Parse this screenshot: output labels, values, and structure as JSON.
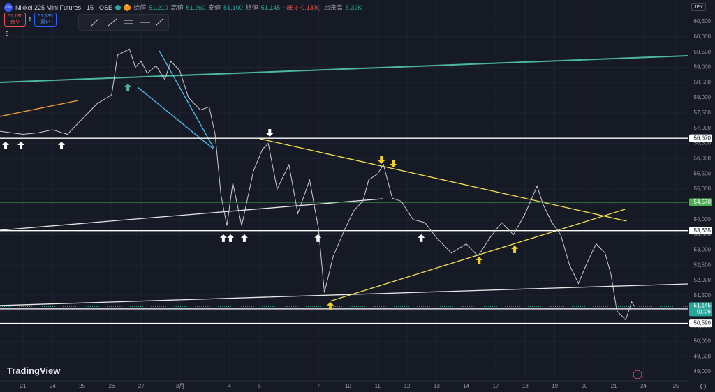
{
  "header": {
    "badge": "225",
    "symbol": "Nikkei 225 Mini Futures · 15 · OSE",
    "flag": "D",
    "open_label": "始値",
    "open": "51,210",
    "high_label": "高値",
    "high": "51,260",
    "low_label": "安値",
    "low": "51,100",
    "close_label": "終値",
    "close": "51,145",
    "change": "−85 (−0.13%)",
    "volume_label": "出来高",
    "volume": "5.32K"
  },
  "order": {
    "sell_price": "51,130",
    "sell_label": "売り",
    "spread": "5",
    "buy_price": "51,135",
    "buy_label": "買い"
  },
  "indicator": "5",
  "currency": "JPY",
  "brand": "TradingView",
  "chart_data": {
    "type": "line",
    "color": "#c9ccd4",
    "x": [
      -0.78,
      0,
      0.5,
      1,
      1.5,
      2,
      2.5,
      3,
      3.2,
      3.6,
      3.8,
      4.0,
      4.2,
      4.5,
      4.8,
      5.0,
      5.3,
      5.6,
      6.0,
      6.3,
      6.5,
      6.7,
      6.9,
      7.1,
      7.4,
      7.8,
      8.1,
      8.3,
      8.6,
      9.0,
      9.3,
      9.7,
      10.0,
      10.2,
      10.5,
      10.9,
      11.2,
      11.5,
      11.7,
      12.0,
      12.2,
      12.5,
      12.8,
      13.2,
      13.6,
      14.0,
      14.5,
      15.0,
      15.4,
      15.8,
      16.2,
      16.6,
      17.0,
      17.4,
      17.6,
      17.9,
      18.2,
      18.5,
      18.8,
      19.1,
      19.4,
      19.7,
      19.9,
      20.1,
      20.4,
      20.6,
      20.7
    ],
    "values": [
      56900,
      56800,
      56850,
      56950,
      56800,
      57300,
      57800,
      58100,
      59400,
      59600,
      59000,
      59200,
      58800,
      59050,
      58600,
      59200,
      58900,
      58000,
      57600,
      57700,
      56800,
      54800,
      53800,
      55200,
      53800,
      55600,
      56300,
      56500,
      55000,
      55800,
      54200,
      55300,
      53700,
      51600,
      52800,
      53700,
      54300,
      54600,
      55300,
      55500,
      55800,
      54700,
      54600,
      54000,
      53900,
      53400,
      52900,
      53200,
      52800,
      53400,
      53900,
      53500,
      54200,
      55100,
      54500,
      53900,
      53500,
      52500,
      51900,
      52600,
      53200,
      52900,
      52200,
      51000,
      50700,
      51300,
      51145
    ],
    "xlim": [
      -0.78,
      22.5
    ],
    "ylim": [
      48702,
      61210
    ],
    "xticks": [
      {
        "value": 0,
        "label": "21"
      },
      {
        "value": 1,
        "label": "24"
      },
      {
        "value": 2,
        "label": "25"
      },
      {
        "value": 3,
        "label": "26"
      },
      {
        "value": 4,
        "label": "27"
      },
      {
        "value": 5.32,
        "label": "3月"
      },
      {
        "value": 6.99,
        "label": "4"
      },
      {
        "value": 8,
        "label": "5"
      },
      {
        "value": 10,
        "label": "7"
      },
      {
        "value": 11,
        "label": "10"
      },
      {
        "value": 12,
        "label": "11"
      },
      {
        "value": 13,
        "label": "12"
      },
      {
        "value": 14,
        "label": "13"
      },
      {
        "value": 15,
        "label": "14"
      },
      {
        "value": 16,
        "label": "17"
      },
      {
        "value": 17,
        "label": "18"
      },
      {
        "value": 18,
        "label": "19"
      },
      {
        "value": 19,
        "label": "20"
      },
      {
        "value": 20,
        "label": "21"
      },
      {
        "value": 21,
        "label": "24"
      },
      {
        "value": 22.1,
        "label": "25"
      }
    ],
    "yticks": [
      {
        "value": 49000,
        "label": "49,000"
      },
      {
        "value": 49500,
        "label": "49,500"
      },
      {
        "value": 50000,
        "label": "50,000"
      },
      {
        "value": 50500,
        "label": "50,500"
      },
      {
        "value": 51000,
        "label": "51,000"
      },
      {
        "value": 51500,
        "label": "51,500"
      },
      {
        "value": 52000,
        "label": "52,000"
      },
      {
        "value": 52500,
        "label": "52,500"
      },
      {
        "value": 53000,
        "label": "53,000"
      },
      {
        "value": 53500,
        "label": "53,500"
      },
      {
        "value": 54000,
        "label": "54,000"
      },
      {
        "value": 54500,
        "label": "54,500"
      },
      {
        "value": 55000,
        "label": "55,000"
      },
      {
        "value": 55500,
        "label": "55,500"
      },
      {
        "value": 56000,
        "label": "56,000"
      },
      {
        "value": 56500,
        "label": "56,500"
      },
      {
        "value": 57000,
        "label": "57,000"
      },
      {
        "value": 57500,
        "label": "57,500"
      },
      {
        "value": 58000,
        "label": "58,000"
      },
      {
        "value": 58500,
        "label": "58,500"
      },
      {
        "value": 59000,
        "label": "59,000"
      },
      {
        "value": 59500,
        "label": "59,500"
      },
      {
        "value": 60000,
        "label": "60,000"
      },
      {
        "value": 60500,
        "label": "60,500"
      }
    ],
    "grid": true,
    "levels": [
      {
        "value": 56670,
        "label": "56,670",
        "color": "#ffffff"
      },
      {
        "value": 54570,
        "label": "54,570",
        "color": "#4caf50"
      },
      {
        "value": 53635,
        "label": "53,635",
        "color": "#ffffff"
      },
      {
        "value": 51065,
        "label": "51,065",
        "color": "#ffffff"
      },
      {
        "value": 50590,
        "label": "50,590",
        "color": "#ffffff"
      }
    ],
    "current": {
      "value": 51145,
      "label": "51,145",
      "countdown": "01:06",
      "color": "#26a69a"
    },
    "drawings": [
      {
        "color": "#4db6a4",
        "x": [
          -0.78,
          22.5
        ],
        "values": [
          58507,
          59378
        ]
      },
      {
        "color": "#f0a030",
        "x": [
          -0.78,
          1.87
        ],
        "values": [
          57385,
          57912
        ]
      },
      {
        "color": "#4fc3f7",
        "x": [
          4.61,
          6.45
        ],
        "values": [
          59538,
          56355
        ]
      },
      {
        "color": "#4fc3f7",
        "x": [
          3.88,
          6.43
        ],
        "values": [
          58347,
          56330
        ]
      },
      {
        "color": "#f5e050",
        "x": [
          8.01,
          20.43
        ],
        "values": [
          56655,
          53949
        ]
      },
      {
        "color": "#f5e050",
        "x": [
          10.38,
          20.38
        ],
        "values": [
          51315,
          54338
        ]
      },
      {
        "color": "#e8e8e8",
        "x": [
          -0.78,
          12.17
        ],
        "values": [
          53651,
          54682
        ]
      },
      {
        "color": "#e8e8e8",
        "x": [
          -0.78,
          22.5
        ],
        "values": [
          51177,
          51887
        ]
      }
    ],
    "markers": [
      {
        "dir": "up",
        "color": "#ffffff",
        "x": -0.59,
        "value": 56560
      },
      {
        "dir": "up",
        "color": "#ffffff",
        "x": -0.07,
        "value": 56560
      },
      {
        "dir": "up",
        "color": "#ffffff",
        "x": 1.3,
        "value": 56560
      },
      {
        "dir": "up",
        "color": "#4db6a4",
        "x": 3.55,
        "value": 58462
      },
      {
        "dir": "down",
        "color": "#ffffff",
        "x": 8.35,
        "value": 56720
      },
      {
        "dir": "up",
        "color": "#ffffff",
        "x": 6.78,
        "value": 53515
      },
      {
        "dir": "up",
        "color": "#ffffff",
        "x": 7.02,
        "value": 53515
      },
      {
        "dir": "up",
        "color": "#ffffff",
        "x": 7.49,
        "value": 53515
      },
      {
        "dir": "up",
        "color": "#ffffff",
        "x": 9.98,
        "value": 53515
      },
      {
        "dir": "up",
        "color": "#ffffff",
        "x": 13.48,
        "value": 53515
      },
      {
        "dir": "down",
        "color": "#f5d020",
        "x": 12.13,
        "value": 55828
      },
      {
        "dir": "down",
        "color": "#f5d020",
        "x": 12.53,
        "value": 55713
      },
      {
        "dir": "up",
        "color": "#f5d020",
        "x": 10.4,
        "value": 51293
      },
      {
        "dir": "up",
        "color": "#f5d020",
        "x": 15.44,
        "value": 52781
      },
      {
        "dir": "up",
        "color": "#f5d020",
        "x": 16.64,
        "value": 53148
      }
    ]
  }
}
